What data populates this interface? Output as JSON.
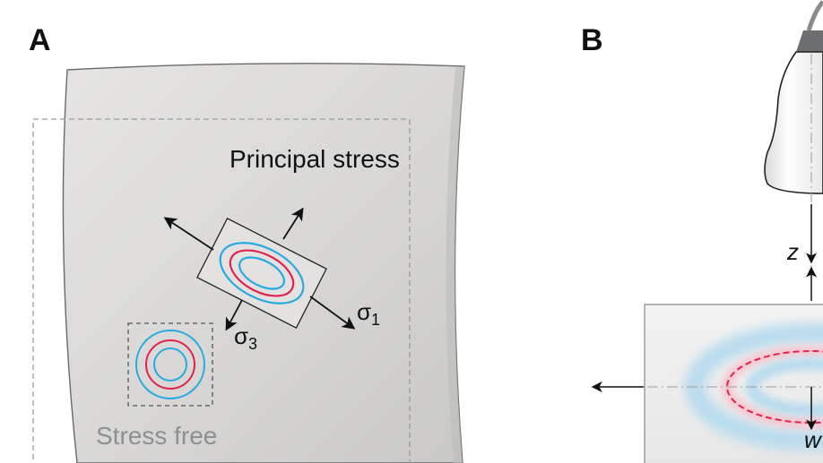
{
  "panels": {
    "a": {
      "label": "A",
      "annotation_principal": "Principal stress",
      "annotation_free": "Stress free",
      "sigma1": {
        "symbol": "σ",
        "sub": "1"
      },
      "sigma3": {
        "symbol": "σ",
        "sub": "3"
      }
    },
    "b": {
      "label": "B",
      "axis_z": "z",
      "axis_w": "w"
    }
  },
  "colors": {
    "ring_red": "#e0224f",
    "ring_blue": "#27a9e1",
    "halo_blue": "#b8dcef",
    "halo_red": "#f6c6cf",
    "sheet_fill": "#d9d8d6",
    "dash_gray": "#9a9a9a",
    "text_gray": "#8f8f8f",
    "probe_gray": "#6d6e70"
  },
  "icons": [
    "arrow-icon",
    "transducer-icon"
  ]
}
